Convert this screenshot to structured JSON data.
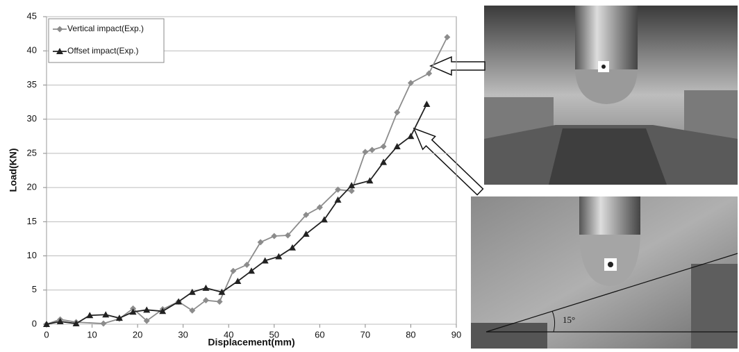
{
  "chart_data": {
    "type": "line",
    "x_label": "Displacement(mm)",
    "y_label": "Load(KN)",
    "xlim": [
      0,
      90
    ],
    "xticks": [
      0,
      10,
      20,
      30,
      40,
      50,
      60,
      70,
      80,
      90
    ],
    "ylim": [
      0,
      45
    ],
    "yticks": [
      0,
      5,
      10,
      15,
      20,
      25,
      30,
      35,
      40,
      45
    ],
    "grid": true,
    "legend": "upper left",
    "series": [
      {
        "name": "Vertical impact(Exp.)",
        "color": "#8c8c8c",
        "marker": "diamond",
        "x": [
          0,
          3,
          6.5,
          12.5,
          16,
          19,
          22,
          25.5,
          29,
          32,
          35,
          38,
          41,
          44,
          47,
          50,
          53,
          57,
          60,
          64,
          67,
          70,
          71.5,
          74,
          77,
          80,
          84,
          88
        ],
        "values": [
          0,
          0.7,
          0.3,
          0.1,
          0.8,
          2.3,
          0.5,
          2.2,
          3.3,
          2.0,
          3.5,
          3.3,
          7.8,
          8.7,
          12,
          12.9,
          13.0,
          16,
          17.1,
          19.7,
          19.5,
          25.2,
          25.5,
          26,
          31,
          35.3,
          36.7,
          42
        ]
      },
      {
        "name": "Offset impact(Exp.)",
        "color": "#222222",
        "marker": "triangle",
        "x": [
          0,
          3,
          6.5,
          9.5,
          13,
          16,
          19,
          22,
          25.5,
          29,
          32,
          35,
          38.5,
          42,
          45,
          48,
          51,
          54,
          57,
          61,
          64,
          67,
          71,
          74,
          77,
          80,
          83.5
        ],
        "values": [
          0,
          0.4,
          0.1,
          1.3,
          1.4,
          0.9,
          1.8,
          2.1,
          1.9,
          3.3,
          4.7,
          5.3,
          4.7,
          6.3,
          7.8,
          9.3,
          9.9,
          11.2,
          13.2,
          15.3,
          18.2,
          20.3,
          21,
          23.7,
          26,
          27.5,
          32.2
        ]
      }
    ],
    "photo_annotation": "15°"
  }
}
